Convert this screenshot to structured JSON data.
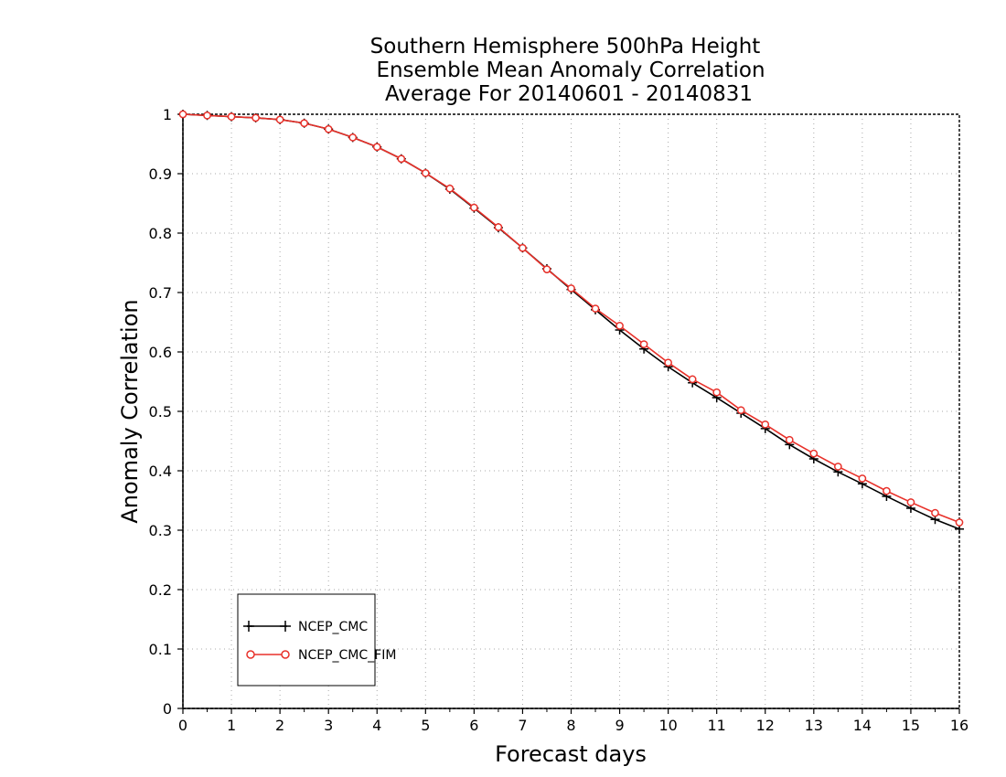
{
  "chart_data": {
    "type": "line",
    "title": [
      "Southern Hemisphere 500hPa Height",
      "Ensemble Mean Anomaly Correlation",
      "Average For 20140601 - 20140831"
    ],
    "xlabel": "Forecast days",
    "ylabel": "Anomaly Correlation",
    "xlim": [
      0,
      16
    ],
    "ylim": [
      0,
      1
    ],
    "xticks": [
      "0",
      "1",
      "2",
      "3",
      "4",
      "5",
      "6",
      "7",
      "8",
      "9",
      "10",
      "11",
      "12",
      "13",
      "14",
      "15",
      "16"
    ],
    "yticks": [
      "0",
      "0.1",
      "0.2",
      "0.3",
      "0.4",
      "0.5",
      "0.6",
      "0.7",
      "0.8",
      "0.9",
      "1"
    ],
    "grid": true,
    "legend_position": "bottom-left",
    "x": [
      0,
      0.5,
      1,
      1.5,
      2,
      2.5,
      3,
      3.5,
      4,
      4.5,
      5,
      5.5,
      6,
      6.5,
      7,
      7.5,
      8,
      8.5,
      9,
      9.5,
      10,
      10.5,
      11,
      11.5,
      12,
      12.5,
      13,
      13.5,
      14,
      14.5,
      15,
      15.5,
      16
    ],
    "series": [
      {
        "name": "NCEP_CMC",
        "color": "#000000",
        "marker": "plus",
        "values": [
          1.0,
          0.998,
          0.996,
          0.994,
          0.991,
          0.985,
          0.975,
          0.961,
          0.945,
          0.925,
          0.901,
          0.874,
          0.842,
          0.809,
          0.775,
          0.74,
          0.705,
          0.671,
          0.637,
          0.605,
          0.575,
          0.548,
          0.523,
          0.497,
          0.471,
          0.444,
          0.42,
          0.398,
          0.378,
          0.357,
          0.337,
          0.318,
          0.302
        ]
      },
      {
        "name": "NCEP_CMC_FIM",
        "color": "#e8312a",
        "marker": "circle",
        "values": [
          1.0,
          0.998,
          0.996,
          0.994,
          0.991,
          0.985,
          0.975,
          0.961,
          0.945,
          0.925,
          0.901,
          0.875,
          0.843,
          0.81,
          0.775,
          0.739,
          0.707,
          0.673,
          0.644,
          0.613,
          0.582,
          0.554,
          0.532,
          0.502,
          0.478,
          0.452,
          0.429,
          0.407,
          0.387,
          0.366,
          0.347,
          0.329,
          0.313
        ]
      }
    ]
  }
}
